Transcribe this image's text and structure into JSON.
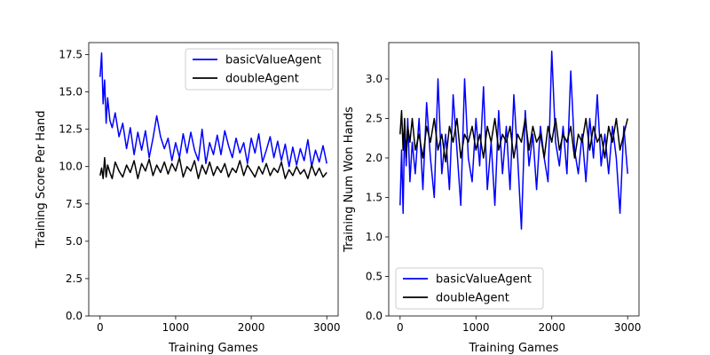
{
  "chart_data": [
    {
      "type": "line",
      "xlabel": "Training Games",
      "ylabel": "Training Score Per Hand",
      "xlim": [
        -150,
        3150
      ],
      "ylim": [
        0,
        18.3
      ],
      "xticks": [
        0,
        1000,
        2000,
        3000
      ],
      "xtick_labels": [
        "0",
        "1000",
        "2000",
        "3000"
      ],
      "yticks": [
        0,
        2.5,
        5,
        7.5,
        10,
        12.5,
        15,
        17.5
      ],
      "ytick_labels": [
        "0.0",
        "2.5",
        "5.0",
        "7.5",
        "10.0",
        "12.5",
        "15.0",
        "17.5"
      ],
      "grid": false,
      "legend_position": "top-right",
      "series": [
        {
          "name": "basicValueAgent",
          "color": "#0000ff",
          "x": [
            0,
            20,
            40,
            60,
            80,
            100,
            130,
            160,
            200,
            250,
            300,
            350,
            400,
            450,
            500,
            550,
            600,
            650,
            700,
            750,
            800,
            850,
            900,
            950,
            1000,
            1050,
            1100,
            1150,
            1200,
            1250,
            1300,
            1350,
            1400,
            1450,
            1500,
            1550,
            1600,
            1650,
            1700,
            1750,
            1800,
            1850,
            1900,
            1950,
            2000,
            2050,
            2100,
            2150,
            2200,
            2250,
            2300,
            2350,
            2400,
            2450,
            2500,
            2550,
            2600,
            2650,
            2700,
            2750,
            2800,
            2850,
            2900,
            2950,
            3000
          ],
          "y": [
            16.0,
            17.6,
            14.2,
            15.8,
            12.9,
            14.6,
            13.1,
            12.6,
            13.6,
            12.0,
            12.9,
            11.2,
            12.6,
            10.8,
            12.3,
            11.1,
            12.4,
            10.6,
            11.9,
            13.4,
            12.0,
            11.2,
            11.9,
            10.4,
            11.6,
            10.6,
            12.2,
            10.9,
            12.3,
            11.1,
            10.4,
            12.5,
            10.2,
            11.6,
            10.8,
            12.1,
            10.8,
            12.4,
            11.4,
            10.6,
            11.9,
            10.9,
            11.6,
            10.2,
            11.9,
            10.9,
            12.2,
            10.3,
            11.1,
            12.0,
            10.6,
            11.7,
            10.4,
            11.5,
            10.0,
            11.3,
            10.1,
            11.2,
            10.4,
            11.8,
            10.0,
            11.1,
            10.3,
            11.4,
            10.2
          ]
        },
        {
          "name": "doubleAgent",
          "color": "#000000",
          "x": [
            0,
            20,
            40,
            60,
            80,
            100,
            130,
            160,
            200,
            250,
            300,
            350,
            400,
            450,
            500,
            550,
            600,
            650,
            700,
            750,
            800,
            850,
            900,
            950,
            1000,
            1050,
            1100,
            1150,
            1200,
            1250,
            1300,
            1350,
            1400,
            1450,
            1500,
            1550,
            1600,
            1650,
            1700,
            1750,
            1800,
            1850,
            1900,
            1950,
            2000,
            2050,
            2100,
            2150,
            2200,
            2250,
            2300,
            2350,
            2400,
            2450,
            2500,
            2550,
            2600,
            2650,
            2700,
            2750,
            2800,
            2850,
            2900,
            2950,
            3000
          ],
          "y": [
            9.4,
            9.9,
            9.2,
            10.6,
            9.3,
            10.1,
            9.6,
            9.2,
            10.3,
            9.7,
            9.3,
            10.1,
            9.6,
            10.4,
            9.2,
            10.2,
            9.7,
            10.5,
            9.4,
            10.1,
            9.6,
            10.3,
            9.5,
            10.2,
            9.7,
            10.6,
            9.3,
            10.0,
            9.7,
            10.4,
            9.2,
            10.1,
            9.5,
            10.3,
            9.4,
            10.0,
            9.6,
            10.2,
            9.3,
            9.9,
            9.6,
            10.4,
            9.4,
            10.1,
            9.7,
            9.3,
            10.0,
            9.5,
            10.2,
            9.4,
            9.9,
            9.6,
            10.3,
            9.2,
            9.8,
            9.4,
            10.0,
            9.5,
            9.8,
            9.2,
            10.1,
            9.4,
            9.9,
            9.3,
            9.6
          ]
        }
      ]
    },
    {
      "type": "line",
      "xlabel": "Training Games",
      "ylabel": "Training Num Won Hands",
      "xlim": [
        -150,
        3150
      ],
      "ylim": [
        0,
        3.46
      ],
      "xticks": [
        0,
        1000,
        2000,
        3000
      ],
      "xtick_labels": [
        "0",
        "1000",
        "2000",
        "3000"
      ],
      "yticks": [
        0,
        0.5,
        1.0,
        1.5,
        2.0,
        2.5,
        3.0
      ],
      "ytick_labels": [
        "0.0",
        "0.5",
        "1.0",
        "1.5",
        "2.0",
        "2.5",
        "3.0"
      ],
      "grid": false,
      "legend_position": "bottom-left",
      "series": [
        {
          "name": "basicValueAgent",
          "color": "#0000ff",
          "x": [
            0,
            20,
            40,
            60,
            80,
            100,
            130,
            160,
            200,
            250,
            300,
            350,
            400,
            450,
            500,
            550,
            600,
            650,
            700,
            750,
            800,
            850,
            900,
            950,
            1000,
            1050,
            1100,
            1150,
            1200,
            1250,
            1300,
            1350,
            1400,
            1450,
            1500,
            1550,
            1600,
            1650,
            1700,
            1750,
            1800,
            1850,
            1900,
            1950,
            2000,
            2050,
            2100,
            2150,
            2200,
            2250,
            2300,
            2350,
            2400,
            2450,
            2500,
            2550,
            2600,
            2650,
            2700,
            2750,
            2800,
            2850,
            2900,
            2950,
            3000
          ],
          "y": [
            1.4,
            2.1,
            1.3,
            2.4,
            1.9,
            2.5,
            1.7,
            2.2,
            1.8,
            2.5,
            1.6,
            2.7,
            2.0,
            1.5,
            3.0,
            1.8,
            2.3,
            1.6,
            2.8,
            2.1,
            1.4,
            3.0,
            2.0,
            1.7,
            2.5,
            1.9,
            2.9,
            1.6,
            2.2,
            1.4,
            2.6,
            1.8,
            2.4,
            1.6,
            2.8,
            2.0,
            1.1,
            2.6,
            1.9,
            2.3,
            1.6,
            2.4,
            2.0,
            1.7,
            3.35,
            2.2,
            1.9,
            2.4,
            1.8,
            3.1,
            2.1,
            1.8,
            2.3,
            1.7,
            2.5,
            2.0,
            2.8,
            1.9,
            2.3,
            1.8,
            2.4,
            2.0,
            1.3,
            2.4,
            1.8
          ]
        },
        {
          "name": "doubleAgent",
          "color": "#000000",
          "x": [
            0,
            20,
            40,
            60,
            80,
            100,
            130,
            160,
            200,
            250,
            300,
            350,
            400,
            450,
            500,
            550,
            600,
            650,
            700,
            750,
            800,
            850,
            900,
            950,
            1000,
            1050,
            1100,
            1150,
            1200,
            1250,
            1300,
            1350,
            1400,
            1450,
            1500,
            1550,
            1600,
            1650,
            1700,
            1750,
            1800,
            1850,
            1900,
            1950,
            2000,
            2050,
            2100,
            2150,
            2200,
            2250,
            2300,
            2350,
            2400,
            2450,
            2500,
            2550,
            2600,
            2650,
            2700,
            2750,
            2800,
            2850,
            2900,
            2950,
            3000
          ],
          "y": [
            2.3,
            2.6,
            2.1,
            2.5,
            2.0,
            2.4,
            2.2,
            2.5,
            2.1,
            2.3,
            2.0,
            2.4,
            2.2,
            2.5,
            2.1,
            2.3,
            1.95,
            2.4,
            2.2,
            2.5,
            2.0,
            2.3,
            2.2,
            2.4,
            2.1,
            2.3,
            2.0,
            2.4,
            2.2,
            2.5,
            2.1,
            2.3,
            2.2,
            2.4,
            2.0,
            2.3,
            2.2,
            2.5,
            2.1,
            2.4,
            2.2,
            2.3,
            2.0,
            2.4,
            2.2,
            2.5,
            2.1,
            2.3,
            2.2,
            2.4,
            2.0,
            2.3,
            2.2,
            2.5,
            2.1,
            2.4,
            2.2,
            2.3,
            2.0,
            2.4,
            2.2,
            2.5,
            2.1,
            2.3,
            2.5
          ]
        }
      ]
    }
  ]
}
